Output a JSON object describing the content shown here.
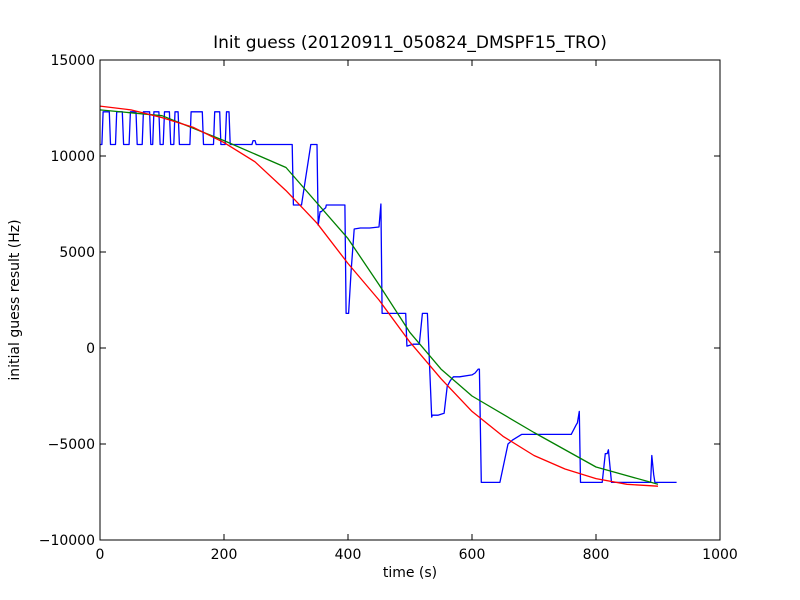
{
  "chart_data": {
    "type": "line",
    "title": "Init guess (20120911_050824_DMSPF15_TRO)",
    "xlabel": "time (s)",
    "ylabel": "initial guess result (Hz)",
    "xlim": [
      0,
      1000
    ],
    "ylim": [
      -10000,
      15000
    ],
    "xticks": [
      0,
      200,
      400,
      600,
      800,
      1000
    ],
    "yticks": [
      -10000,
      -5000,
      0,
      5000,
      10000,
      15000
    ],
    "xtick_labels": [
      "0",
      "200",
      "400",
      "600",
      "800",
      "1000"
    ],
    "ytick_labels": [
      "−10000",
      "−5000",
      "0",
      "5000",
      "10000",
      "15000"
    ],
    "grid": false,
    "legend": "none",
    "series": [
      {
        "color": "#0000ff",
        "x": [
          0,
          3,
          5,
          15,
          17,
          25,
          27,
          36,
          38,
          47,
          49,
          58,
          60,
          68,
          70,
          80,
          82,
          85,
          87,
          95,
          97,
          102,
          104,
          112,
          114,
          119,
          121,
          126,
          128,
          145,
          147,
          165,
          167,
          183,
          185,
          193,
          195,
          202,
          204,
          208,
          210,
          215,
          220,
          245,
          247,
          250,
          252,
          255,
          310,
          312,
          325,
          330,
          340,
          343,
          350,
          352,
          355,
          357,
          360,
          364,
          365,
          370,
          375,
          383,
          385,
          395,
          397,
          400,
          401,
          405,
          410,
          420,
          430,
          435,
          450,
          453,
          455,
          457,
          460,
          475,
          490,
          493,
          495,
          505,
          515,
          520,
          526,
          528,
          535,
          536,
          540,
          545,
          555,
          560,
          565,
          570,
          580,
          600,
          605,
          610,
          612,
          615,
          625,
          635,
          645,
          658,
          665,
          680,
          700,
          720,
          760,
          768,
          770,
          773,
          775,
          778,
          780,
          800,
          810,
          815,
          818,
          820,
          825,
          830,
          840,
          850,
          870,
          888,
          890,
          893,
          895,
          900,
          930
        ],
        "y": [
          10600,
          10600,
          12300,
          12300,
          10600,
          10600,
          12300,
          12300,
          10600,
          10600,
          12300,
          12300,
          10600,
          10600,
          12300,
          12300,
          10600,
          10600,
          12300,
          12300,
          10600,
          10600,
          12300,
          12300,
          10600,
          10600,
          12300,
          12300,
          10600,
          10600,
          12300,
          12300,
          10600,
          10600,
          12300,
          12300,
          10600,
          10600,
          12300,
          12300,
          10600,
          10600,
          10600,
          10600,
          10800,
          10800,
          10600,
          10600,
          10600,
          7450,
          7450,
          8500,
          10600,
          10600,
          10600,
          6400,
          7100,
          7100,
          7200,
          7300,
          7450,
          7450,
          7450,
          7450,
          7450,
          7450,
          1800,
          1800,
          1800,
          4000,
          6200,
          6250,
          6250,
          6250,
          6300,
          7500,
          1800,
          1800,
          1800,
          1800,
          1800,
          1800,
          100,
          200,
          200,
          1800,
          1800,
          1800,
          -3600,
          -3500,
          -3500,
          -3500,
          -3400,
          -2000,
          -1700,
          -1500,
          -1500,
          -1400,
          -1300,
          -1100,
          -1100,
          -7000,
          -7000,
          -7000,
          -7000,
          -5000,
          -4800,
          -4500,
          -4500,
          -4500,
          -4500,
          -4000,
          -3900,
          -3300,
          -7000,
          -7000,
          -7000,
          -7000,
          -7000,
          -5500,
          -5500,
          -5300,
          -7000,
          -7000,
          -7000,
          -7000,
          -7000,
          -7000,
          -5600,
          -6600,
          -7000,
          -7000,
          -7000
        ]
      },
      {
        "color": "#008000",
        "x": [
          0,
          100,
          200,
          300,
          400,
          450,
          500,
          550,
          600,
          700,
          800,
          900
        ],
        "y": [
          12400,
          12100,
          10800,
          9400,
          5700,
          3300,
          800,
          -1100,
          -2500,
          -4400,
          -6200,
          -7100
        ]
      },
      {
        "color": "#ff0000",
        "x": [
          0,
          50,
          100,
          150,
          200,
          250,
          300,
          350,
          400,
          450,
          500,
          550,
          600,
          650,
          700,
          750,
          800,
          850,
          900
        ],
        "y": [
          12600,
          12400,
          12000,
          11500,
          10700,
          9700,
          8200,
          6500,
          4400,
          2500,
          300,
          -1600,
          -3300,
          -4600,
          -5600,
          -6300,
          -6800,
          -7100,
          -7200
        ]
      }
    ]
  }
}
